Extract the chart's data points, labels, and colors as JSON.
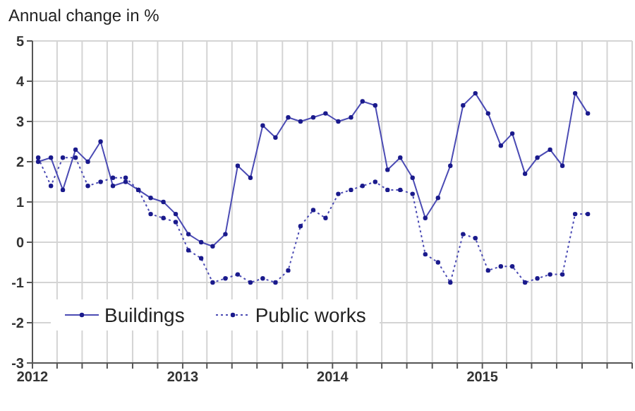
{
  "chart_data": {
    "type": "line",
    "ylabel": "Annual change in %",
    "x": [
      "2012-01-15",
      "2012-02-15",
      "2012-03-15",
      "2012-04-15",
      "2012-05-15",
      "2012-06-15",
      "2012-07-15",
      "2012-08-15",
      "2012-09-15",
      "2012-10-15",
      "2012-11-15",
      "2012-12-15",
      "2013-01-15",
      "2013-02-15",
      "2013-03-15",
      "2013-04-15",
      "2013-05-15",
      "2013-06-15",
      "2013-07-15",
      "2013-08-15",
      "2013-09-15",
      "2013-10-15",
      "2013-11-15",
      "2013-12-15",
      "2014-01-15",
      "2014-02-15",
      "2014-03-15",
      "2014-04-15",
      "2014-05-15",
      "2014-06-15",
      "2014-07-15",
      "2014-08-15",
      "2014-09-15",
      "2014-10-15",
      "2014-11-15",
      "2014-12-15",
      "2015-01-15",
      "2015-02-15",
      "2015-03-15",
      "2015-04-15",
      "2015-05-15",
      "2015-06-15",
      "2015-07-15",
      "2015-08-15",
      "2015-09-15"
    ],
    "series": [
      {
        "name": "Buildings",
        "color": "#4b4bb4",
        "line_style": "solid",
        "values": [
          2.0,
          2.1,
          1.3,
          2.3,
          2.0,
          2.5,
          1.4,
          1.5,
          1.3,
          1.1,
          1.0,
          0.7,
          0.2,
          0.0,
          -0.1,
          0.2,
          1.9,
          1.6,
          2.9,
          2.6,
          3.1,
          3.0,
          3.1,
          3.2,
          3.0,
          3.1,
          3.5,
          3.4,
          1.8,
          2.1,
          1.6,
          0.6,
          1.1,
          1.9,
          3.4,
          3.7,
          3.2,
          2.4,
          2.7,
          1.7,
          2.1,
          2.3,
          1.9,
          3.7,
          3.2
        ]
      },
      {
        "name": "Public works",
        "color": "#4b4bb4",
        "line_style": "dotted",
        "values": [
          2.1,
          1.4,
          2.1,
          2.1,
          1.4,
          1.5,
          1.6,
          1.6,
          1.3,
          0.7,
          0.6,
          0.5,
          -0.2,
          -0.4,
          -1.0,
          -0.9,
          -0.8,
          -1.0,
          -0.9,
          -1.0,
          -0.7,
          0.4,
          0.8,
          0.6,
          1.2,
          1.3,
          1.4,
          1.5,
          1.3,
          1.3,
          1.2,
          -0.3,
          -0.5,
          -1.0,
          0.2,
          0.1,
          -0.7,
          -0.6,
          -0.6,
          -1.0,
          -0.9,
          -0.8,
          -0.8,
          0.7,
          0.7
        ]
      }
    ],
    "xlim": [
      "2012-01-01",
      "2016-01-01"
    ],
    "xticks": [
      {
        "value": "2012-01-01",
        "label": "2012"
      },
      {
        "value": "2012-03-01",
        "label": null
      },
      {
        "value": "2012-05-01",
        "label": null
      },
      {
        "value": "2012-07-01",
        "label": null
      },
      {
        "value": "2012-09-01",
        "label": null
      },
      {
        "value": "2012-11-01",
        "label": null
      },
      {
        "value": "2013-01-01",
        "label": "2013"
      },
      {
        "value": "2013-03-01",
        "label": null
      },
      {
        "value": "2013-05-01",
        "label": null
      },
      {
        "value": "2013-07-01",
        "label": null
      },
      {
        "value": "2013-09-01",
        "label": null
      },
      {
        "value": "2013-11-01",
        "label": null
      },
      {
        "value": "2014-01-01",
        "label": "2014"
      },
      {
        "value": "2014-03-01",
        "label": null
      },
      {
        "value": "2014-05-01",
        "label": null
      },
      {
        "value": "2014-07-01",
        "label": null
      },
      {
        "value": "2014-09-01",
        "label": null
      },
      {
        "value": "2014-11-01",
        "label": null
      },
      {
        "value": "2015-01-01",
        "label": "2015"
      },
      {
        "value": "2015-03-01",
        "label": null
      },
      {
        "value": "2015-05-01",
        "label": null
      },
      {
        "value": "2015-07-01",
        "label": null
      },
      {
        "value": "2015-09-01",
        "label": null
      },
      {
        "value": "2015-11-01",
        "label": null
      },
      {
        "value": "2016-01-01",
        "label": null
      }
    ],
    "ylim": [
      -3,
      5
    ],
    "yticks": [
      -3,
      -2,
      -1,
      0,
      1,
      2,
      3,
      4,
      5
    ],
    "grid": true,
    "legend": "bottom left",
    "marker": "circle"
  }
}
